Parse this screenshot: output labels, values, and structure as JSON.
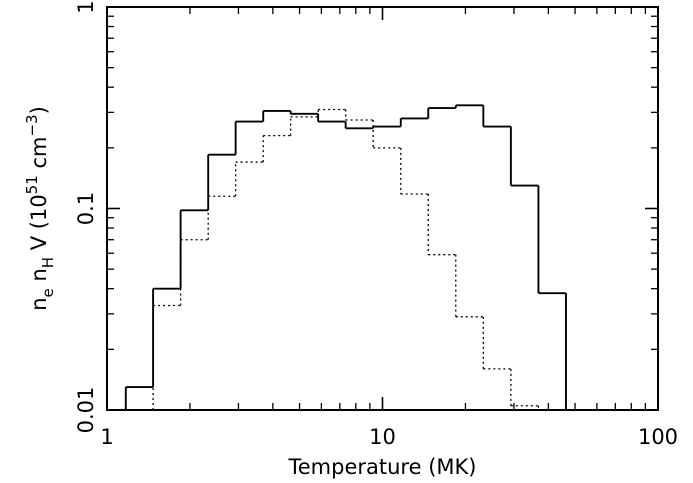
{
  "chart_data": {
    "type": "line",
    "style": "step-histogram",
    "xlabel": "Temperature (MK)",
    "ylabel": {
      "parts": [
        {
          "text": "n",
          "shift": "base"
        },
        {
          "text": "e",
          "shift": "sub"
        },
        {
          "text": " n",
          "shift": "base"
        },
        {
          "text": "H",
          "shift": "sub"
        },
        {
          "text": " V (10",
          "shift": "base"
        },
        {
          "text": "51",
          "shift": "sup"
        },
        {
          "text": " cm",
          "shift": "base"
        },
        {
          "text": "−3",
          "shift": "sup"
        },
        {
          "text": ")",
          "shift": "base"
        }
      ]
    },
    "x_scale": "log",
    "y_scale": "log",
    "xlim": [
      1,
      100
    ],
    "ylim": [
      0.01,
      1
    ],
    "x_tick_labels": [
      {
        "value": 1,
        "label": "1"
      },
      {
        "value": 10,
        "label": "10"
      },
      {
        "value": 100,
        "label": "100"
      }
    ],
    "y_tick_labels": [
      {
        "value": 0.01,
        "label": "0.01"
      },
      {
        "value": 0.1,
        "label": "0.1"
      },
      {
        "value": 1,
        "label": "1"
      }
    ],
    "grid": false,
    "series": [
      {
        "line_style": "solid",
        "color": "#000000",
        "bins": [
          {
            "x0": 1.17,
            "x1": 1.47,
            "y": 0.013
          },
          {
            "x0": 1.47,
            "x1": 1.85,
            "y": 0.04
          },
          {
            "x0": 1.85,
            "x1": 2.33,
            "y": 0.098
          },
          {
            "x0": 2.33,
            "x1": 2.93,
            "y": 0.185
          },
          {
            "x0": 2.93,
            "x1": 3.69,
            "y": 0.27
          },
          {
            "x0": 3.69,
            "x1": 4.64,
            "y": 0.305
          },
          {
            "x0": 4.64,
            "x1": 5.84,
            "y": 0.295
          },
          {
            "x0": 5.84,
            "x1": 7.35,
            "y": 0.27
          },
          {
            "x0": 7.35,
            "x1": 9.25,
            "y": 0.25
          },
          {
            "x0": 9.25,
            "x1": 11.65,
            "y": 0.255
          },
          {
            "x0": 11.65,
            "x1": 14.66,
            "y": 0.28
          },
          {
            "x0": 14.66,
            "x1": 18.45,
            "y": 0.315
          },
          {
            "x0": 18.45,
            "x1": 23.23,
            "y": 0.325
          },
          {
            "x0": 23.23,
            "x1": 29.24,
            "y": 0.255
          },
          {
            "x0": 29.24,
            "x1": 36.81,
            "y": 0.13
          },
          {
            "x0": 36.81,
            "x1": 46.34,
            "y": 0.038
          }
        ]
      },
      {
        "line_style": "dotted",
        "color": "#000000",
        "bins": [
          {
            "x0": 1.47,
            "x1": 1.85,
            "y": 0.033
          },
          {
            "x0": 1.85,
            "x1": 2.33,
            "y": 0.07
          },
          {
            "x0": 2.33,
            "x1": 2.93,
            "y": 0.115
          },
          {
            "x0": 2.93,
            "x1": 3.69,
            "y": 0.17
          },
          {
            "x0": 3.69,
            "x1": 4.64,
            "y": 0.23
          },
          {
            "x0": 4.64,
            "x1": 5.84,
            "y": 0.285
          },
          {
            "x0": 5.84,
            "x1": 7.35,
            "y": 0.31
          },
          {
            "x0": 7.35,
            "x1": 9.25,
            "y": 0.275
          },
          {
            "x0": 9.25,
            "x1": 11.65,
            "y": 0.2
          },
          {
            "x0": 11.65,
            "x1": 14.66,
            "y": 0.118
          },
          {
            "x0": 14.66,
            "x1": 18.45,
            "y": 0.059
          },
          {
            "x0": 18.45,
            "x1": 23.23,
            "y": 0.029
          },
          {
            "x0": 23.23,
            "x1": 29.24,
            "y": 0.016
          },
          {
            "x0": 29.24,
            "x1": 36.81,
            "y": 0.0105
          }
        ]
      }
    ]
  }
}
